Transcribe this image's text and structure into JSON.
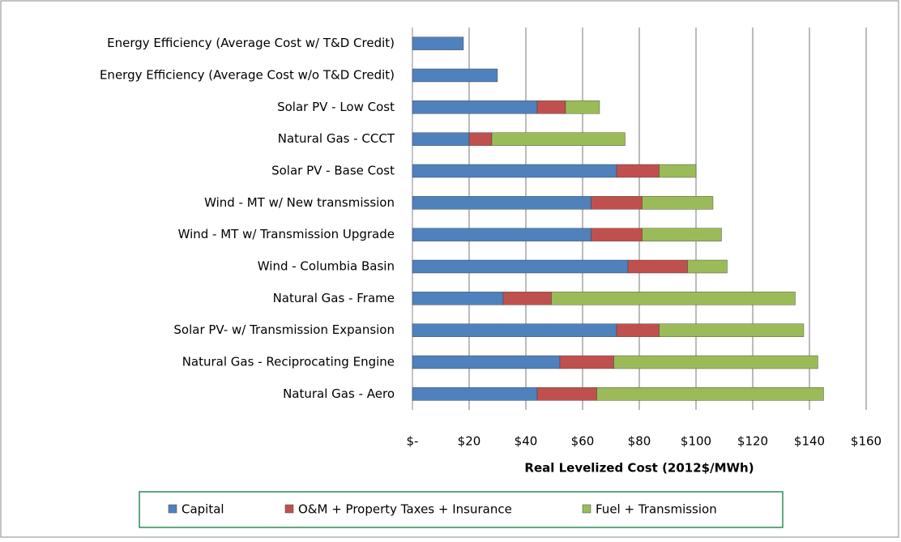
{
  "chart_data": {
    "type": "bar",
    "orientation": "horizontal",
    "stacked": true,
    "x_label": "Real Levelized Cost (2012$/MWh)",
    "categories": [
      "Energy Efficiency (Average Cost w/ T&D Credit)",
      "Energy Efficiency (Average Cost w/o T&D Credit)",
      "Solar PV - Low Cost",
      "Natural Gas - CCCT",
      "Solar PV - Base Cost",
      "Wind - MT w/ New transmission",
      "Wind - MT w/ Transmission Upgrade",
      "Wind - Columbia Basin",
      "Natural Gas - Frame",
      "Solar PV- w/ Transmission Expansion",
      "Natural Gas - Reciprocating Engine",
      "Natural Gas - Aero"
    ],
    "series": [
      {
        "name": "Capital",
        "color": "#4f81bd",
        "values": [
          18,
          30,
          44,
          20,
          72,
          63,
          63,
          76,
          32,
          72,
          52,
          44
        ]
      },
      {
        "name": "O&M + Property Taxes + Insurance",
        "color": "#c0504d",
        "values": [
          null,
          null,
          10,
          8,
          15,
          18,
          18,
          21,
          17,
          15,
          19,
          21
        ]
      },
      {
        "name": "Fuel + Transmission",
        "color": "#9bbb59",
        "values": [
          null,
          null,
          12,
          47,
          13,
          25,
          28,
          14,
          86,
          51,
          72,
          80
        ]
      }
    ],
    "xlim": [
      0,
      160
    ],
    "xticks": [
      {
        "value": 0,
        "label": "$-"
      },
      {
        "value": 20,
        "label": "$20"
      },
      {
        "value": 40,
        "label": "$40"
      },
      {
        "value": 60,
        "label": "$60"
      },
      {
        "value": 80,
        "label": "$80"
      },
      {
        "value": 100,
        "label": "$100"
      },
      {
        "value": 120,
        "label": "$120"
      },
      {
        "value": 140,
        "label": "$140"
      },
      {
        "value": 160,
        "label": "$160"
      }
    ],
    "grid": true,
    "legend": "bottom"
  }
}
